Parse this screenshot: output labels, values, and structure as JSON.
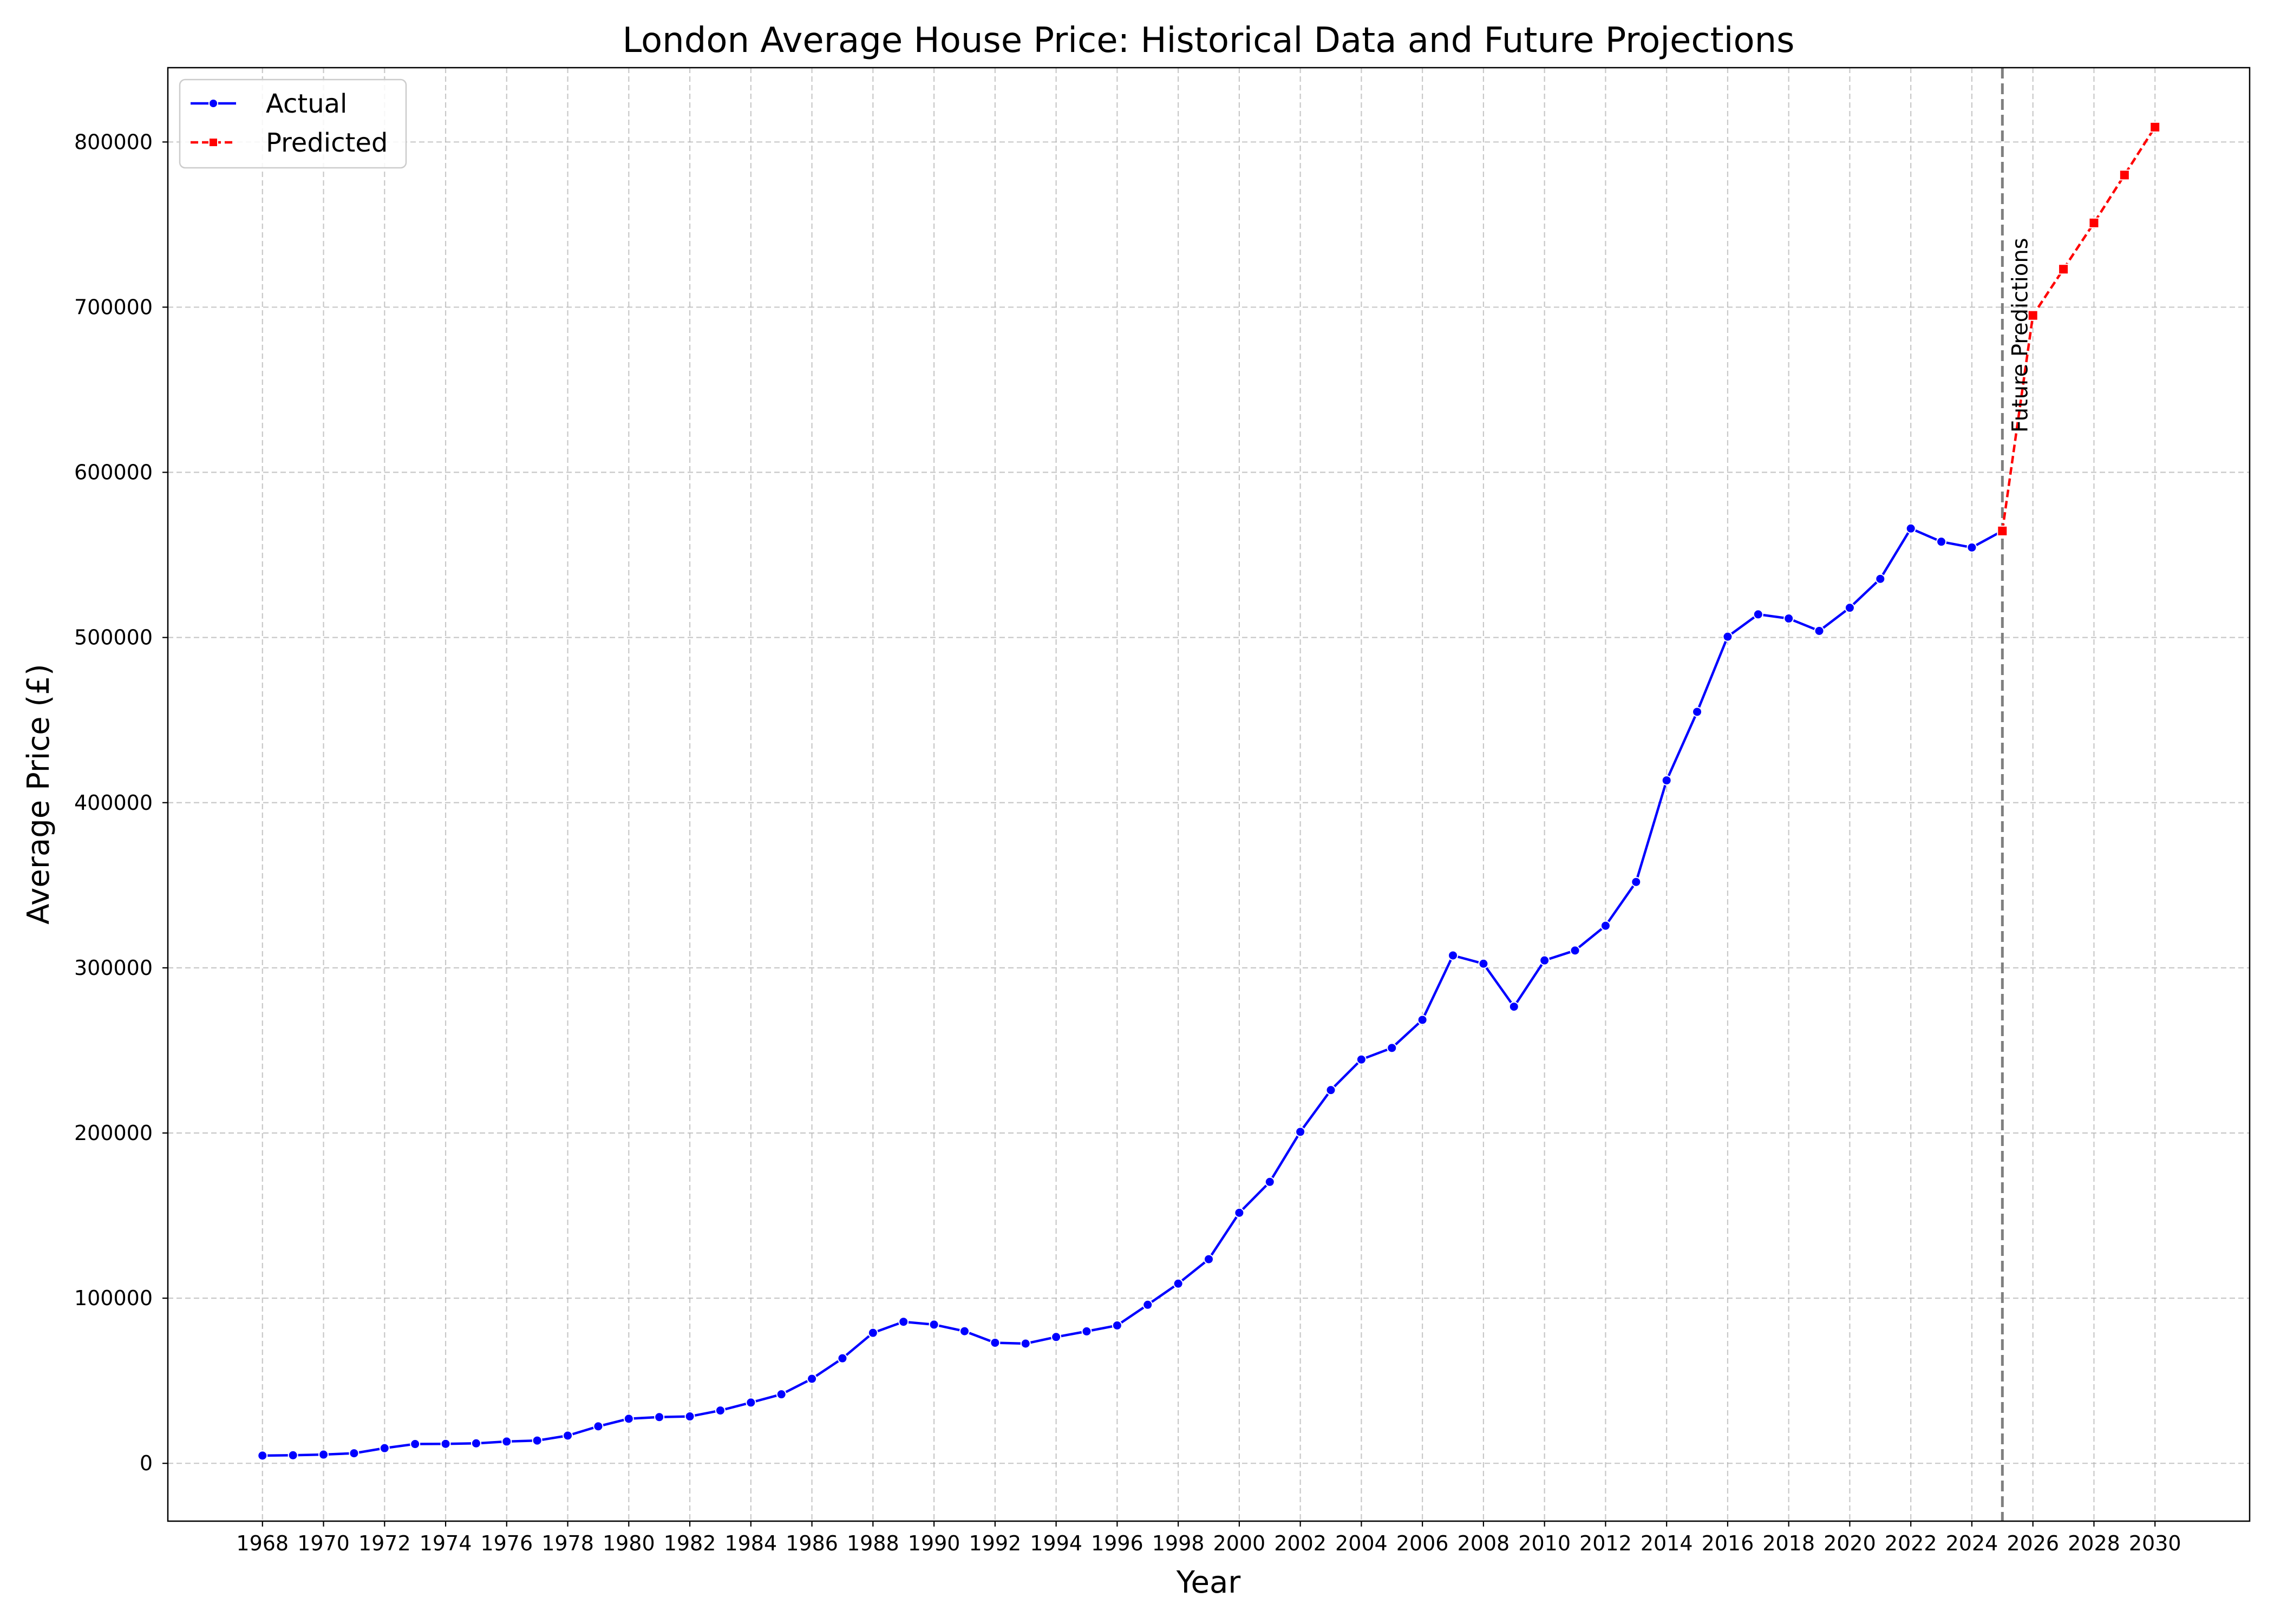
{
  "chart_data": {
    "type": "line",
    "title": "London Average House Price: Historical Data and Future Projections",
    "xlabel": "Year",
    "ylabel": "Average Price (£)",
    "xlim": [
      1964.9,
      2033.1
    ],
    "ylim": [
      -35000,
      845000
    ],
    "x_ticks": [
      1968,
      1970,
      1972,
      1974,
      1976,
      1978,
      1980,
      1982,
      1984,
      1986,
      1988,
      1990,
      1992,
      1994,
      1996,
      1998,
      2000,
      2002,
      2004,
      2006,
      2008,
      2010,
      2012,
      2014,
      2016,
      2018,
      2020,
      2022,
      2024,
      2026,
      2028,
      2030
    ],
    "y_ticks": [
      0,
      100000,
      200000,
      300000,
      400000,
      500000,
      600000,
      700000,
      800000
    ],
    "grid": true,
    "legend_position": "top-left",
    "series": [
      {
        "name": "Actual",
        "color": "#0000ff",
        "line_style": "solid",
        "marker": "circle",
        "x": [
          1968,
          1969,
          1970,
          1971,
          1972,
          1973,
          1974,
          1975,
          1976,
          1977,
          1978,
          1979,
          1980,
          1981,
          1982,
          1983,
          1984,
          1985,
          1986,
          1987,
          1988,
          1989,
          1990,
          1991,
          1992,
          1993,
          1994,
          1995,
          1996,
          1997,
          1998,
          1999,
          2000,
          2001,
          2002,
          2003,
          2004,
          2005,
          2006,
          2007,
          2008,
          2009,
          2010,
          2011,
          2012,
          2013,
          2014,
          2015,
          2016,
          2017,
          2018,
          2019,
          2020,
          2021,
          2022,
          2023,
          2024,
          2025
        ],
        "values": [
          4700,
          4900,
          5300,
          6100,
          9200,
          11700,
          11800,
          12100,
          13200,
          13800,
          16800,
          22400,
          27000,
          28000,
          28400,
          32000,
          36800,
          41800,
          51200,
          63600,
          79000,
          85700,
          84000,
          80000,
          73000,
          72500,
          76500,
          79900,
          83500,
          96000,
          108800,
          123600,
          151700,
          170400,
          200700,
          226000,
          244500,
          251500,
          268500,
          307500,
          302500,
          276500,
          304500,
          310500,
          325500,
          352000,
          413500,
          455000,
          500500,
          514000,
          511500,
          504000,
          518000,
          535500,
          566000,
          558000,
          554500,
          564500
        ]
      },
      {
        "name": "Predicted",
        "color": "#ff0000",
        "line_style": "dashed",
        "marker": "square",
        "x": [
          2025,
          2026,
          2027,
          2028,
          2029,
          2030
        ],
        "values": [
          564500,
          695000,
          723000,
          751000,
          780000,
          809000
        ]
      }
    ],
    "vertical_line": {
      "x": 2025,
      "color": "#7f7f7f",
      "line_style": "dashed"
    },
    "annotations": [
      {
        "text": "Future Predictions",
        "x": 2025,
        "y": 683000,
        "rotation": 90
      }
    ]
  }
}
